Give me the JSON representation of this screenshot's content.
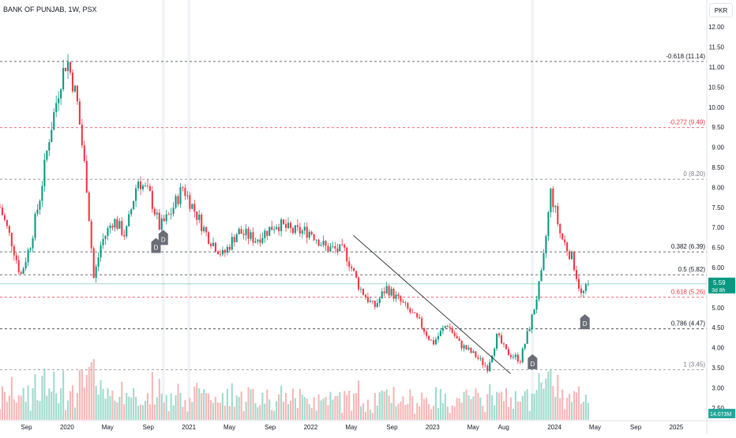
{
  "header": {
    "title": "BANK OF PUNJAB, 1W, PSX",
    "currency": "PKR"
  },
  "chart_data": {
    "type": "candlestick",
    "symbol": "BANK OF PUNJAB",
    "interval": "1W",
    "exchange": "PSX",
    "ylim": [
      2.2,
      12.2
    ],
    "y_ticks": [
      "12.00",
      "11.50",
      "11.00",
      "10.50",
      "10.00",
      "9.50",
      "9.00",
      "8.50",
      "8.00",
      "7.50",
      "7.00",
      "6.50",
      "6.00",
      "5.50",
      "5.00",
      "4.50",
      "4.00",
      "3.50",
      "3.00",
      "2.50"
    ],
    "x_ticks": [
      {
        "label": "Sep",
        "t": 2019.667
      },
      {
        "label": "2020",
        "t": 2020.0
      },
      {
        "label": "May",
        "t": 2020.333
      },
      {
        "label": "Sep",
        "t": 2020.667
      },
      {
        "label": "2021",
        "t": 2021.0
      },
      {
        "label": "May",
        "t": 2021.333
      },
      {
        "label": "Sep",
        "t": 2021.667
      },
      {
        "label": "2022",
        "t": 2022.0
      },
      {
        "label": "May",
        "t": 2022.333
      },
      {
        "label": "Sep",
        "t": 2022.667
      },
      {
        "label": "2023",
        "t": 2023.0
      },
      {
        "label": "May",
        "t": 2023.333
      },
      {
        "label": "Aug",
        "t": 2023.583
      },
      {
        "label": "2024",
        "t": 2024.0
      },
      {
        "label": "May",
        "t": 2024.333
      },
      {
        "label": "Sep",
        "t": 2024.667
      },
      {
        "label": "2025",
        "t": 2025.0
      }
    ],
    "x_range": [
      2019.45,
      2025.25
    ],
    "fib_levels": [
      {
        "label": "-0.618 (11.14)",
        "value": 11.14,
        "color": "#131722"
      },
      {
        "label": "-0.272 (9.49)",
        "value": 9.49,
        "color": "#f23645"
      },
      {
        "label": "0 (8.20)",
        "value": 8.2,
        "color": "#787b86"
      },
      {
        "label": "0.382 (6.39)",
        "value": 6.39,
        "color": "#131722"
      },
      {
        "label": "0.5 (5.82)",
        "value": 5.82,
        "color": "#131722"
      },
      {
        "label": "0.618 (5.26)",
        "value": 5.26,
        "color": "#f23645"
      },
      {
        "label": "0.786 (4.47)",
        "value": 4.47,
        "color": "#131722"
      },
      {
        "label": "1 (3.45)",
        "value": 3.45,
        "color": "#787b86"
      }
    ],
    "price_key_points": [
      {
        "t": 2019.45,
        "p": 7.5
      },
      {
        "t": 2019.55,
        "p": 6.6
      },
      {
        "t": 2019.62,
        "p": 5.8
      },
      {
        "t": 2019.7,
        "p": 6.6
      },
      {
        "t": 2019.78,
        "p": 7.8
      },
      {
        "t": 2019.85,
        "p": 9.2
      },
      {
        "t": 2019.95,
        "p": 10.7
      },
      {
        "t": 2020.0,
        "p": 11.2
      },
      {
        "t": 2020.08,
        "p": 10.2
      },
      {
        "t": 2020.16,
        "p": 8.1
      },
      {
        "t": 2020.22,
        "p": 5.7
      },
      {
        "t": 2020.28,
        "p": 6.6
      },
      {
        "t": 2020.38,
        "p": 7.2
      },
      {
        "t": 2020.48,
        "p": 6.8
      },
      {
        "t": 2020.58,
        "p": 8.2
      },
      {
        "t": 2020.68,
        "p": 7.8
      },
      {
        "t": 2020.76,
        "p": 7.0
      },
      {
        "t": 2020.84,
        "p": 7.3
      },
      {
        "t": 2020.95,
        "p": 8.0
      },
      {
        "t": 2021.05,
        "p": 7.4
      },
      {
        "t": 2021.15,
        "p": 6.8
      },
      {
        "t": 2021.28,
        "p": 6.3
      },
      {
        "t": 2021.4,
        "p": 6.9
      },
      {
        "t": 2021.55,
        "p": 6.7
      },
      {
        "t": 2021.72,
        "p": 7.1
      },
      {
        "t": 2021.85,
        "p": 6.9
      },
      {
        "t": 2022.0,
        "p": 6.9
      },
      {
        "t": 2022.12,
        "p": 6.5
      },
      {
        "t": 2022.28,
        "p": 6.4
      },
      {
        "t": 2022.4,
        "p": 5.5
      },
      {
        "t": 2022.52,
        "p": 5.0
      },
      {
        "t": 2022.62,
        "p": 5.5
      },
      {
        "t": 2022.75,
        "p": 5.1
      },
      {
        "t": 2022.9,
        "p": 4.6
      },
      {
        "t": 2023.0,
        "p": 4.1
      },
      {
        "t": 2023.12,
        "p": 4.6
      },
      {
        "t": 2023.22,
        "p": 4.1
      },
      {
        "t": 2023.35,
        "p": 3.8
      },
      {
        "t": 2023.45,
        "p": 3.5
      },
      {
        "t": 2023.53,
        "p": 4.3
      },
      {
        "t": 2023.6,
        "p": 3.9
      },
      {
        "t": 2023.72,
        "p": 3.7
      },
      {
        "t": 2023.82,
        "p": 4.8
      },
      {
        "t": 2023.9,
        "p": 5.9
      },
      {
        "t": 2023.97,
        "p": 7.9
      },
      {
        "t": 2024.05,
        "p": 6.8
      },
      {
        "t": 2024.15,
        "p": 6.2
      },
      {
        "t": 2024.22,
        "p": 5.3
      },
      {
        "t": 2024.29,
        "p": 5.59
      }
    ],
    "trendline": [
      {
        "t": 2022.35,
        "p": 6.8
      },
      {
        "t": 2023.64,
        "p": 3.35
      }
    ],
    "last_price": "5.59",
    "countdown": "3d 8h",
    "volume_label": "14.073M",
    "dividend_markers": [
      {
        "t": 2020.73,
        "p": 6.5,
        "text": "D"
      },
      {
        "t": 2020.79,
        "p": 6.7,
        "text": "D"
      },
      {
        "t": 2023.82,
        "p": 3.6,
        "text": "D"
      },
      {
        "t": 2024.25,
        "p": 4.6,
        "text": "D"
      }
    ],
    "vertical_separators": [
      2020.79,
      2021.0,
      2023.82
    ]
  }
}
